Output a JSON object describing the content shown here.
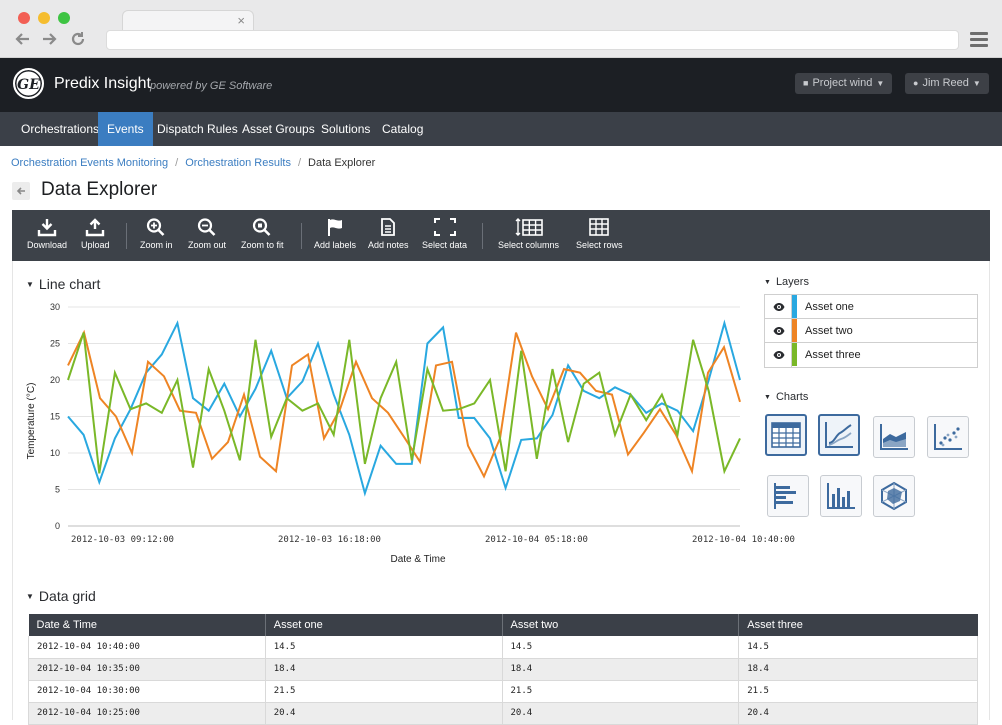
{
  "browser": {
    "tab_close": "×",
    "back_icon": "arrow-left-icon",
    "forward_icon": "arrow-right-icon",
    "reload_icon": "reload-icon",
    "menu_icon": "hamburger-icon"
  },
  "header": {
    "logo_text": "GE",
    "title": "Predix Insight",
    "subtitle": "powered by GE Software",
    "project_label": "Project wind",
    "user_label": "Jim  Reed"
  },
  "nav": {
    "items": [
      {
        "label": "Orchestrations",
        "active": false
      },
      {
        "label": "Events",
        "active": true
      },
      {
        "label": "Dispatch Rules",
        "active": false
      },
      {
        "label": "Asset Groups",
        "active": false
      },
      {
        "label": "Solutions",
        "active": false
      },
      {
        "label": "Catalog",
        "active": false
      }
    ]
  },
  "breadcrumb": {
    "items": [
      "Orchestration Events Monitoring",
      "Orchestration Results"
    ],
    "current": "Data Explorer"
  },
  "page": {
    "title": "Data Explorer"
  },
  "toolbar": {
    "download": "Download",
    "upload": "Upload",
    "zoom_in": "Zoom in",
    "zoom_out": "Zoom out",
    "zoom_fit": "Zoom to fit",
    "add_labels": "Add labels",
    "add_notes": "Add notes",
    "select_data": "Select data",
    "select_columns": "Select columns",
    "select_rows": "Select rows"
  },
  "sections": {
    "line_chart": "Line chart",
    "data_grid": "Data grid",
    "layers": "Layers",
    "charts": "Charts"
  },
  "layers": [
    {
      "label": "Asset one",
      "color": "#29a8e0"
    },
    {
      "label": "Asset two",
      "color": "#ee8424"
    },
    {
      "label": "Asset three",
      "color": "#7ab828"
    }
  ],
  "chart_types": [
    {
      "name": "table-chart-icon",
      "selected": true
    },
    {
      "name": "line-chart-icon",
      "selected": true
    },
    {
      "name": "area-chart-icon",
      "selected": false
    },
    {
      "name": "scatter-chart-icon",
      "selected": false
    },
    {
      "name": "horizontal-bar-chart-icon",
      "selected": false
    },
    {
      "name": "bar-chart-icon",
      "selected": false
    },
    {
      "name": "radar-chart-icon",
      "selected": false
    }
  ],
  "chart_data": {
    "type": "line",
    "xlabel": "Date & Time",
    "ylabel": "Temperature (°C)",
    "ylim": [
      0,
      30
    ],
    "yticks": [
      0,
      5,
      10,
      15,
      20,
      25,
      30
    ],
    "xtick_labels": [
      "2012-10-03 09:12:00",
      "2012-10-03 16:18:00",
      "2012-10-04 05:18:00",
      "2012-10-04 10:40:00"
    ],
    "grid": true,
    "series": [
      {
        "name": "Asset one",
        "color": "#29a8e0",
        "values": [
          15.0,
          12.5,
          6.0,
          12.0,
          16.0,
          21.0,
          23.5,
          27.8,
          17.5,
          15.8,
          19.5,
          15.0,
          18.8,
          24.0,
          17.5,
          19.8,
          25.0,
          18.0,
          12.5,
          4.5,
          11.0,
          8.5,
          8.5,
          25.0,
          27.2,
          14.8,
          14.8,
          12.0,
          5.2,
          11.8,
          12.0,
          15.2,
          22.0,
          18.5,
          17.5,
          19.0,
          18.0,
          15.5,
          16.8,
          15.8,
          13.0,
          20.0,
          27.8,
          20.0
        ]
      },
      {
        "name": "Asset two",
        "color": "#ee8424",
        "values": [
          22.0,
          26.5,
          17.5,
          15.0,
          10.0,
          22.5,
          20.5,
          15.8,
          15.5,
          9.2,
          11.5,
          18.0,
          9.5,
          7.5,
          22.0,
          23.5,
          12.0,
          16.0,
          22.5,
          17.5,
          15.5,
          12.2,
          8.8,
          22.0,
          22.5,
          11.0,
          6.8,
          12.0,
          26.5,
          20.5,
          16.0,
          21.5,
          21.0,
          18.5,
          18.0,
          9.8,
          12.8,
          16.0,
          12.5,
          7.5,
          21.0,
          24.5,
          17.0
        ]
      },
      {
        "name": "Asset three",
        "color": "#7ab828",
        "values": [
          20.0,
          26.5,
          7.2,
          21.0,
          16.0,
          16.8,
          15.5,
          20.0,
          8.0,
          21.5,
          15.8,
          9.0,
          25.5,
          12.2,
          17.5,
          15.8,
          16.8,
          12.5,
          25.5,
          8.5,
          17.5,
          22.5,
          9.0,
          21.5,
          15.8,
          16.0,
          16.8,
          20.0,
          7.5,
          24.0,
          9.2,
          21.5,
          11.5,
          19.5,
          21.0,
          12.5,
          18.0,
          14.5,
          18.0,
          12.5,
          25.5,
          18.5,
          7.5,
          12.0
        ]
      }
    ]
  },
  "grid": {
    "columns": [
      "Date & Time",
      "Asset one",
      "Asset two",
      "Asset three"
    ],
    "rows": [
      [
        "2012-10-04 10:40:00",
        "14.5",
        "14.5",
        "14.5"
      ],
      [
        "2012-10-04 10:35:00",
        "18.4",
        "18.4",
        "18.4"
      ],
      [
        "2012-10-04 10:30:00",
        "21.5",
        "21.5",
        "21.5"
      ],
      [
        "2012-10-04 10:25:00",
        "20.4",
        "20.4",
        "20.4"
      ]
    ]
  }
}
